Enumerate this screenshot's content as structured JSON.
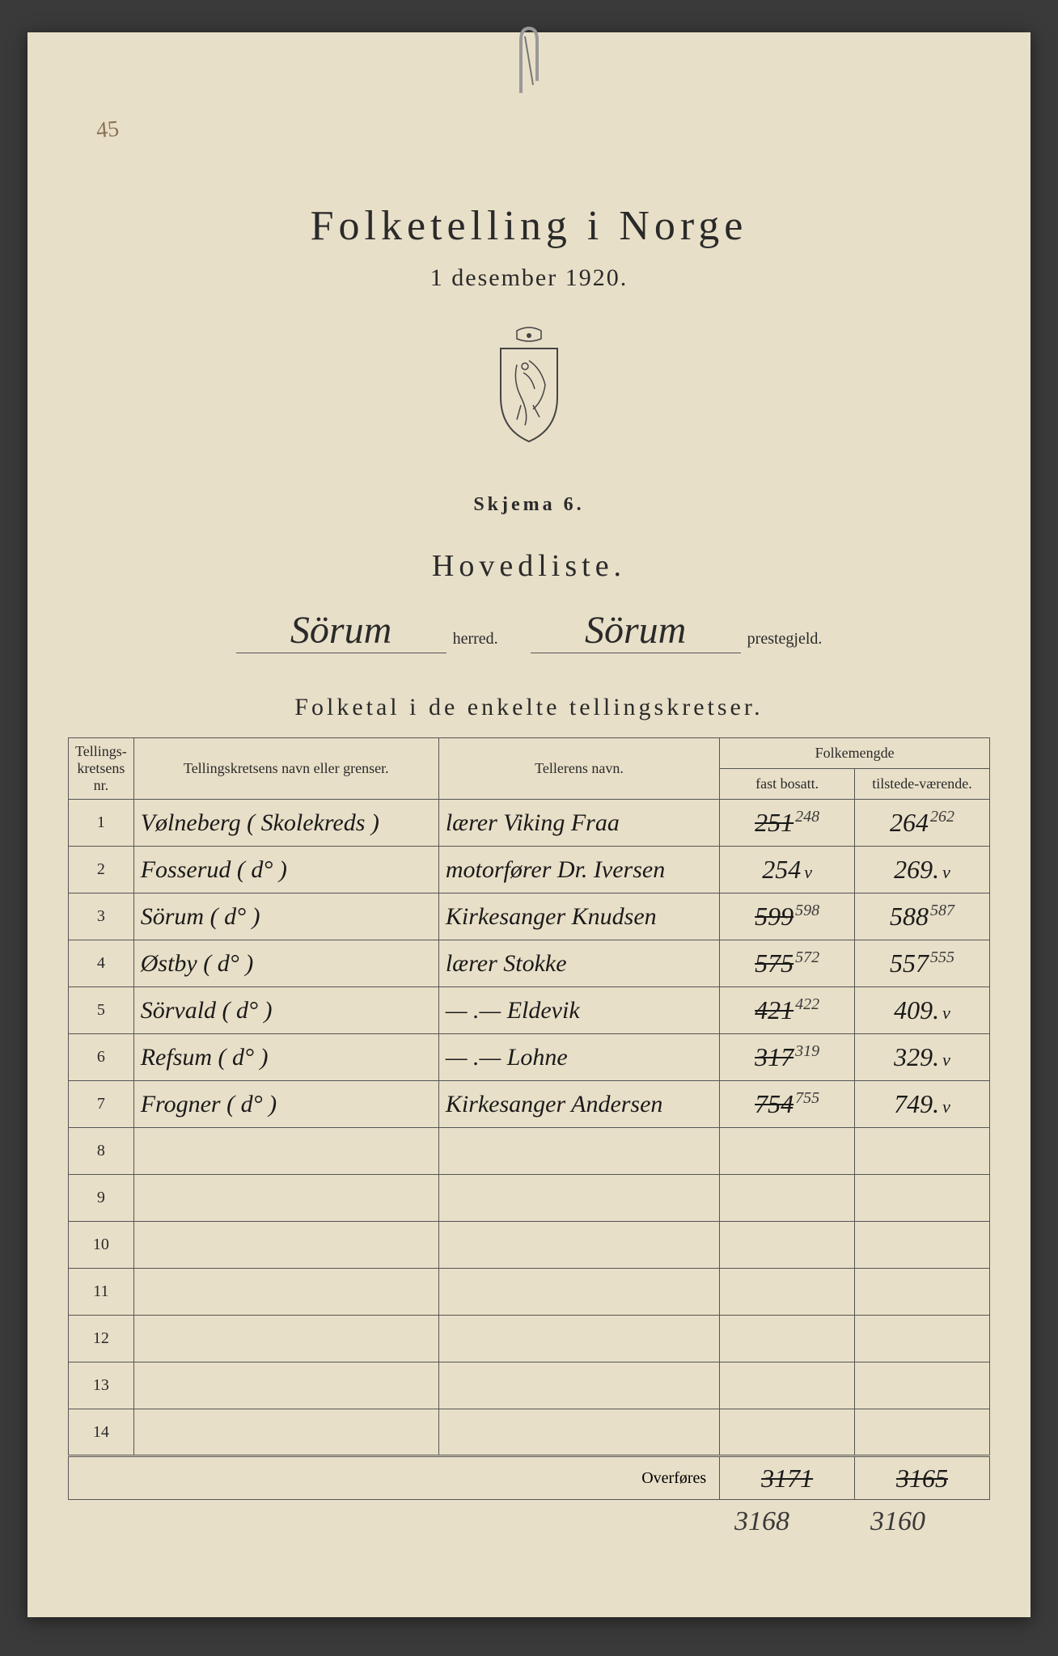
{
  "corner_note": "45",
  "title": "Folketelling i Norge",
  "subtitle": "1 desember 1920.",
  "skjema": "Skjema 6.",
  "hovedliste": "Hovedliste.",
  "herred": {
    "value": "Sörum",
    "label": "herred."
  },
  "prestegjeld": {
    "value": "Sörum",
    "label": "prestegjeld."
  },
  "section_title": "Folketal i de enkelte tellingskretser.",
  "columns": {
    "nr": "Tellings-kretsens nr.",
    "navn": "Tellingskretsens navn eller grenser.",
    "teller": "Tellerens navn.",
    "folkemengde": "Folkemengde",
    "fast": "fast bosatt.",
    "tilstede": "tilstede-værende."
  },
  "rows": [
    {
      "nr": "1",
      "navn": "Vølneberg ( Skolekreds )",
      "teller": "lærer Viking Fraa",
      "fast": "251",
      "fast_corr": "248",
      "fast_strike": true,
      "tilstede": "264",
      "tilstede_corr": "262",
      "tilstede_check": false
    },
    {
      "nr": "2",
      "navn": "Fosserud (   d°   )",
      "teller": "motorfører Dr. Iversen",
      "fast": "254",
      "fast_corr": "",
      "fast_strike": false,
      "fast_check": "v",
      "tilstede": "269.",
      "tilstede_corr": "",
      "tilstede_check": true
    },
    {
      "nr": "3",
      "navn": "Sörum (   d°   )",
      "teller": "Kirkesanger Knudsen",
      "fast": "599",
      "fast_corr": "598",
      "fast_strike": true,
      "tilstede": "588",
      "tilstede_corr": "587",
      "tilstede_check": false
    },
    {
      "nr": "4",
      "navn": "Østby  (   d°   )",
      "teller": "lærer   Stokke",
      "fast": "575",
      "fast_corr": "572",
      "fast_strike": true,
      "tilstede": "557",
      "tilstede_corr": "555",
      "tilstede_check": false
    },
    {
      "nr": "5",
      "navn": "Sörvald (   d°   )",
      "teller": "— .—   Eldevik",
      "fast": "421",
      "fast_corr": "422",
      "fast_strike": true,
      "tilstede": "409.",
      "tilstede_corr": "",
      "tilstede_check": true
    },
    {
      "nr": "6",
      "navn": "Refsum (   d°   )",
      "teller": "— .—   Lohne",
      "fast": "317",
      "fast_corr": "319",
      "fast_strike": true,
      "tilstede": "329.",
      "tilstede_corr": "",
      "tilstede_check": true
    },
    {
      "nr": "7",
      "navn": "Frogner (   d°   )",
      "teller": "Kirkesanger Andersen",
      "fast": "754",
      "fast_corr": "755",
      "fast_strike": true,
      "tilstede": "749.",
      "tilstede_corr": "",
      "tilstede_check": true
    },
    {
      "nr": "8",
      "navn": "",
      "teller": "",
      "fast": "",
      "fast_corr": "",
      "tilstede": "",
      "tilstede_corr": ""
    },
    {
      "nr": "9",
      "navn": "",
      "teller": "",
      "fast": "",
      "fast_corr": "",
      "tilstede": "",
      "tilstede_corr": ""
    },
    {
      "nr": "10",
      "navn": "",
      "teller": "",
      "fast": "",
      "fast_corr": "",
      "tilstede": "",
      "tilstede_corr": ""
    },
    {
      "nr": "11",
      "navn": "",
      "teller": "",
      "fast": "",
      "fast_corr": "",
      "tilstede": "",
      "tilstede_corr": ""
    },
    {
      "nr": "12",
      "navn": "",
      "teller": "",
      "fast": "",
      "fast_corr": "",
      "tilstede": "",
      "tilstede_corr": ""
    },
    {
      "nr": "13",
      "navn": "",
      "teller": "",
      "fast": "",
      "fast_corr": "",
      "tilstede": "",
      "tilstede_corr": ""
    },
    {
      "nr": "14",
      "navn": "",
      "teller": "",
      "fast": "",
      "fast_corr": "",
      "tilstede": "",
      "tilstede_corr": ""
    }
  ],
  "overfor": {
    "label": "Overføres",
    "fast": "3171",
    "tilstede": "3165"
  },
  "below": {
    "fast": "3168",
    "tilstede": "3160"
  },
  "colors": {
    "paper": "#e8dfc8",
    "ink": "#2a2a2a",
    "handwriting": "#1a1a1a",
    "border": "#555555"
  }
}
